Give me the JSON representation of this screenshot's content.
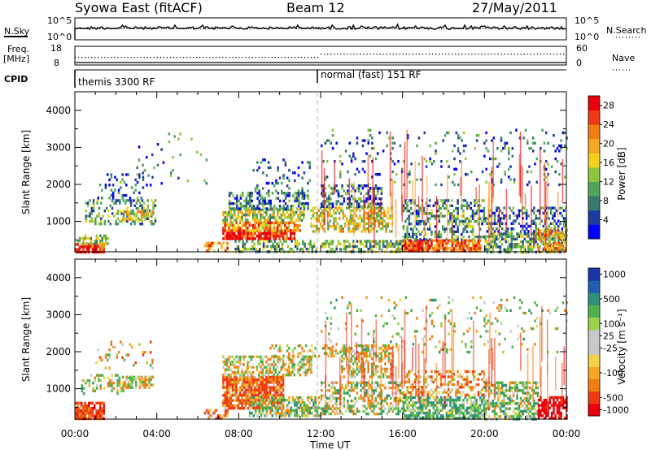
{
  "header": {
    "station": "Syowa East (fitACF)",
    "beam": "Beam 12",
    "date": "27/May/2011"
  },
  "status_panels": {
    "nsky": {
      "label": "N.Sky",
      "ticks": [
        "10^5",
        "10^0"
      ]
    },
    "nsearch": {
      "label": "N.Search",
      "ticks": [
        "10^5",
        "10^0"
      ]
    },
    "freq": {
      "label_line1": "Freq.",
      "label_line2": "[MHz]",
      "ticks": [
        "18",
        "8"
      ]
    },
    "nave": {
      "label": "Nave",
      "ticks": [
        "60",
        "0"
      ]
    },
    "cpid": {
      "label": "CPID",
      "modes": [
        {
          "name": "themis 3300 RF",
          "start_hour": 0
        },
        {
          "name": "normal (fast) 151 RF",
          "start_hour": 12
        }
      ]
    }
  },
  "power_colorbar": {
    "label": "Power [dB]",
    "ticks": [
      "28",
      "24",
      "20",
      "16",
      "12",
      "8",
      "4"
    ],
    "colors": [
      "#0000ff",
      "#1e3a9e",
      "#3a7a6e",
      "#4fa55a",
      "#8ec43e",
      "#f2d21c",
      "#f5a623",
      "#f07e12",
      "#ef3b12",
      "#e8000b"
    ]
  },
  "velocity_colorbar": {
    "label": "Velocity [m s⁻¹]",
    "ticks": [
      "1000",
      "500",
      "100",
      "25",
      "-25",
      "-100",
      "-500",
      "-1000"
    ],
    "colors": [
      "#1c35a8",
      "#1e5fb0",
      "#2e8f7a",
      "#4fb14a",
      "#9bd34a",
      "#c8c8c8",
      "#c8c8c8",
      "#f3d24a",
      "#f5a623",
      "#f07e12",
      "#ef3b12",
      "#e8000b"
    ]
  },
  "chart_data": [
    {
      "type": "heatmap",
      "panel": "power",
      "x_label": "Time UT",
      "x_ticks": [
        "00:00",
        "04:00",
        "08:00",
        "12:00",
        "16:00",
        "20:00",
        "00:00"
      ],
      "x_range_hours": [
        0,
        24
      ],
      "ylabel": "Slant Range [km]",
      "y_ticks": [
        1000,
        2000,
        3000,
        4000
      ],
      "ylim": [
        180,
        4500
      ],
      "colorbar_range_db": [
        0,
        30
      ],
      "clusters": [
        {
          "t0": 0.0,
          "t1": 1.4,
          "r0": 200,
          "r1": 420,
          "value": 26,
          "density": 0.85
        },
        {
          "t0": 0.1,
          "t1": 1.6,
          "r0": 420,
          "r1": 650,
          "value": 14,
          "density": 0.5
        },
        {
          "t0": 0.5,
          "t1": 3.9,
          "r0": 900,
          "r1": 1600,
          "value": 10,
          "density": 0.35
        },
        {
          "t0": 2.3,
          "t1": 3.8,
          "r0": 1050,
          "r1": 1300,
          "value": 17,
          "density": 0.6
        },
        {
          "t0": 1.0,
          "t1": 3.8,
          "r0": 1550,
          "r1": 2300,
          "value": 6,
          "density": 0.15
        },
        {
          "t0": 3.0,
          "t1": 6.5,
          "r0": 2000,
          "r1": 3400,
          "value": 8,
          "density": 0.05
        },
        {
          "t0": 6.3,
          "t1": 7.4,
          "r0": 200,
          "r1": 450,
          "value": 22,
          "density": 0.55
        },
        {
          "t0": 7.2,
          "t1": 10.7,
          "r0": 500,
          "r1": 780,
          "value": 27,
          "density": 0.85
        },
        {
          "t0": 7.2,
          "t1": 11.0,
          "r0": 780,
          "r1": 1000,
          "value": 21,
          "density": 0.75
        },
        {
          "t0": 7.2,
          "t1": 11.2,
          "r0": 1000,
          "r1": 1350,
          "value": 14,
          "density": 0.7
        },
        {
          "t0": 7.5,
          "t1": 11.4,
          "r0": 1350,
          "r1": 1800,
          "value": 8,
          "density": 0.5
        },
        {
          "t0": 8.5,
          "t1": 11.5,
          "r0": 1800,
          "r1": 2700,
          "value": 6,
          "density": 0.12
        },
        {
          "t0": 7.8,
          "t1": 11.8,
          "r0": 200,
          "r1": 500,
          "value": 11,
          "density": 0.5
        },
        {
          "t0": 11.5,
          "t1": 15.5,
          "r0": 700,
          "r1": 1400,
          "value": 16,
          "density": 0.55
        },
        {
          "t0": 12.0,
          "t1": 15.0,
          "r0": 1400,
          "r1": 2000,
          "value": 7,
          "density": 0.45
        },
        {
          "t0": 12.0,
          "t1": 24.0,
          "r0": 2000,
          "r1": 3500,
          "value": 7,
          "density": 0.08
        },
        {
          "t0": 12.0,
          "t1": 16.0,
          "r0": 200,
          "r1": 500,
          "value": 12,
          "density": 0.6
        },
        {
          "t0": 16.0,
          "t1": 19.8,
          "r0": 200,
          "r1": 520,
          "value": 24,
          "density": 0.85
        },
        {
          "t0": 16.0,
          "t1": 20.0,
          "r0": 520,
          "r1": 1600,
          "value": 9,
          "density": 0.4
        },
        {
          "t0": 20.0,
          "t1": 24.0,
          "r0": 200,
          "r1": 700,
          "value": 11,
          "density": 0.65
        },
        {
          "t0": 20.0,
          "t1": 24.0,
          "r0": 700,
          "r1": 1400,
          "value": 7,
          "density": 0.4
        },
        {
          "t0": 22.6,
          "t1": 24.0,
          "r0": 200,
          "r1": 800,
          "value": 20,
          "density": 0.6
        }
      ]
    },
    {
      "type": "heatmap",
      "panel": "velocity",
      "x_label": "Time UT",
      "x_ticks": [
        "00:00",
        "04:00",
        "08:00",
        "12:00",
        "16:00",
        "20:00",
        "00:00"
      ],
      "x_range_hours": [
        0,
        24
      ],
      "ylabel": "Slant Range [km]",
      "y_ticks": [
        1000,
        2000,
        3000,
        4000
      ],
      "ylim": [
        180,
        4500
      ],
      "colorbar_range_ms": [
        -1000,
        1000
      ],
      "clusters": [
        {
          "t0": 0.0,
          "t1": 1.4,
          "r0": 200,
          "r1": 650,
          "value": -350,
          "density": 0.8
        },
        {
          "t0": 0.3,
          "t1": 2.6,
          "r0": 900,
          "r1": 1400,
          "value": 10,
          "density": 0.3
        },
        {
          "t0": 2.3,
          "t1": 3.8,
          "r0": 1000,
          "r1": 1350,
          "value": 0,
          "density": 0.6
        },
        {
          "t0": 1.0,
          "t1": 3.8,
          "r0": 1550,
          "r1": 2300,
          "value": -60,
          "density": 0.12
        },
        {
          "t0": 6.3,
          "t1": 7.4,
          "r0": 200,
          "r1": 450,
          "value": -200,
          "density": 0.5
        },
        {
          "t0": 7.2,
          "t1": 10.2,
          "r0": 500,
          "r1": 1350,
          "value": -250,
          "density": 0.85
        },
        {
          "t0": 7.2,
          "t1": 11.5,
          "r0": 1350,
          "r1": 1900,
          "value": 5,
          "density": 0.55
        },
        {
          "t0": 9.5,
          "t1": 13.5,
          "r0": 1900,
          "r1": 2200,
          "value": 0,
          "density": 0.35
        },
        {
          "t0": 8.5,
          "t1": 12.0,
          "r0": 300,
          "r1": 800,
          "value": 80,
          "density": 0.6
        },
        {
          "t0": 12.0,
          "t1": 16.0,
          "r0": 300,
          "r1": 1200,
          "value": 60,
          "density": 0.45
        },
        {
          "t0": 13.0,
          "t1": 15.5,
          "r0": 1300,
          "r1": 2200,
          "value": 0,
          "density": 0.5
        },
        {
          "t0": 12.0,
          "t1": 24.0,
          "r0": 2000,
          "r1": 3500,
          "value": 30,
          "density": 0.07
        },
        {
          "t0": 16.0,
          "t1": 20.0,
          "r0": 200,
          "r1": 800,
          "value": 200,
          "density": 0.75
        },
        {
          "t0": 16.0,
          "t1": 20.0,
          "r0": 800,
          "r1": 1500,
          "value": -150,
          "density": 0.4
        },
        {
          "t0": 20.0,
          "t1": 22.6,
          "r0": 200,
          "r1": 1200,
          "value": 120,
          "density": 0.6
        },
        {
          "t0": 22.6,
          "t1": 24.0,
          "r0": 200,
          "r1": 800,
          "value": -700,
          "density": 0.65
        }
      ]
    }
  ]
}
